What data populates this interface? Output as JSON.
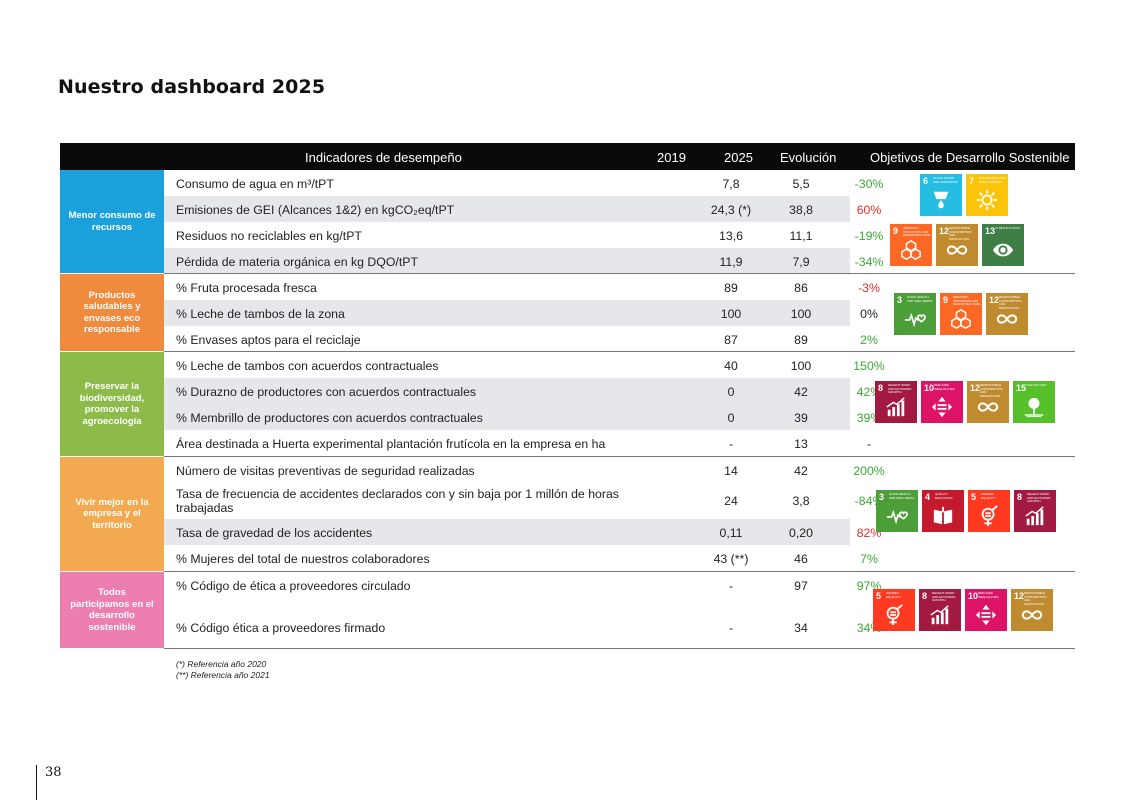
{
  "page": {
    "title": "Nuestro dashboard 2025",
    "page_number": "38"
  },
  "header": {
    "indicators": "Indicadores de desempeño",
    "y2019": "2019",
    "y2025": "2025",
    "evolution": "Evolución",
    "ods": "Objetivos de Desarrollo Sostenible"
  },
  "colors": {
    "up": "#3aa935",
    "down": "#e0302b",
    "neutral": "#222222"
  },
  "sections": [
    {
      "label": "Menor consumo de recursos",
      "color": "#1aa0db",
      "rows": [
        {
          "ind": "Consumo de agua en m³/tPT",
          "y2019": "7,8",
          "y2025": "5,5",
          "ev": "-30%",
          "trend": "up"
        },
        {
          "ind": "Emisiones de GEI (Alcances 1&2) en kgCO₂eq/tPT",
          "y2019": "24,3 (*)",
          "y2025": "38,8",
          "ev": "60%",
          "trend": "down"
        },
        {
          "ind": "Residuos no reciclables en kg/tPT",
          "y2019": "13,6",
          "y2025": "11,1",
          "ev": "-19%",
          "trend": "up"
        },
        {
          "ind": "Pérdida de materia orgánica en kg DQO/tPT",
          "y2019": "11,9",
          "y2025": "7,9",
          "ev": "-34%",
          "trend": "up"
        }
      ],
      "sdgs": [
        [
          {
            "n": "6",
            "t": "CLEAN WATER AND SANITATION",
            "c": "#26bde2",
            "icon": "water-icon"
          },
          {
            "n": "7",
            "t": "AFFORDABLE AND CLEAN ENERGY",
            "c": "#fcc30b",
            "icon": "sun-icon"
          }
        ],
        [
          {
            "n": "9",
            "t": "INDUSTRY, INNOVATION AND INFRASTRUCTURE",
            "c": "#fd6925",
            "icon": "cubes-icon"
          },
          {
            "n": "12",
            "t": "RESPONSIBLE CONSUMPTION AND PRODUCTION",
            "c": "#bf8b2e",
            "icon": "infinity-icon"
          },
          {
            "n": "13",
            "t": "CLIMATE ACTION",
            "c": "#3f7e44",
            "icon": "eye-icon"
          }
        ]
      ]
    },
    {
      "label": "Productos saludables y envases eco responsable",
      "color": "#f08a3c",
      "rows": [
        {
          "ind": "% Fruta procesada fresca",
          "y2019": "89",
          "y2025": "86",
          "ev": "-3%",
          "trend": "down"
        },
        {
          "ind": "% Leche de tambos de la zona",
          "y2019": "100",
          "y2025": "100",
          "ev": "0%",
          "trend": "neutral"
        },
        {
          "ind": "% Envases aptos para el reciclaje",
          "y2019": "87",
          "y2025": "89",
          "ev": "2%",
          "trend": "up"
        }
      ],
      "sdgs": [
        [
          {
            "n": "3",
            "t": "GOOD HEALTH AND WELL-BEING",
            "c": "#4c9f38",
            "icon": "heartbeat-icon"
          },
          {
            "n": "9",
            "t": "INDUSTRY, INNOVATION AND INFRASTRUCTURE",
            "c": "#fd6925",
            "icon": "cubes-icon"
          },
          {
            "n": "12",
            "t": "RESPONSIBLE CONSUMPTION AND PRODUCTION",
            "c": "#bf8b2e",
            "icon": "infinity-icon"
          }
        ]
      ]
    },
    {
      "label": "Preservar la biodiversidad, promover la agroecología",
      "color": "#8dbb4a",
      "rows": [
        {
          "ind": "% Leche de tambos con acuerdos contractuales",
          "y2019": "40",
          "y2025": "100",
          "ev": "150%",
          "trend": "up"
        },
        {
          "ind": "% Durazno de productores con acuerdos contractuales",
          "y2019": "0",
          "y2025": "42",
          "ev": "42%",
          "trend": "up"
        },
        {
          "ind": "% Membrillo de productores con acuerdos contractuales",
          "y2019": "0",
          "y2025": "39",
          "ev": "39%",
          "trend": "up"
        },
        {
          "ind": "Área destinada a Huerta experimental plantación frutícola en la empresa en ha",
          "y2019": "-",
          "y2025": "13",
          "ev": "-",
          "trend": "neutral"
        }
      ],
      "sdgs": [
        [
          {
            "n": "8",
            "t": "DECENT WORK AND ECONOMIC GROWTH",
            "c": "#a21942",
            "icon": "growth-chart-icon"
          },
          {
            "n": "10",
            "t": "REDUCED INEQUALITIES",
            "c": "#dd1367",
            "icon": "equality-icon"
          },
          {
            "n": "12",
            "t": "RESPONSIBLE CONSUMPTION AND PRODUCTION",
            "c": "#bf8b2e",
            "icon": "infinity-icon"
          },
          {
            "n": "15",
            "t": "LIFE ON LAND",
            "c": "#56c02b",
            "icon": "tree-icon"
          }
        ]
      ]
    },
    {
      "label": "Vivir mejor en la empresa y el territorio",
      "color": "#f2a950",
      "rows": [
        {
          "ind": "Número de visitas  preventivas de seguridad realizadas",
          "y2019": "14",
          "y2025": "42",
          "ev": "200%",
          "trend": "up"
        },
        {
          "ind": "Tasa de frecuencia de accidentes declarados con y sin baja por 1 millón de horas trabajadas",
          "y2019": "24",
          "y2025": "3,8",
          "ev": "-84%",
          "trend": "up"
        },
        {
          "ind": "Tasa de gravedad de los accidentes",
          "y2019": "0,11",
          "y2025": "0,20",
          "ev": "82%",
          "trend": "down"
        },
        {
          "ind": "% Mujeres del total de nuestros colaboradores",
          "y2019": "43 (**)",
          "y2025": "46",
          "ev": "7%",
          "trend": "up"
        }
      ],
      "sdgs": [
        [
          {
            "n": "3",
            "t": "GOOD HEALTH AND WELL-BEING",
            "c": "#4c9f38",
            "icon": "heartbeat-icon"
          },
          {
            "n": "4",
            "t": "QUALITY EDUCATION",
            "c": "#c5192d",
            "icon": "book-icon"
          },
          {
            "n": "5",
            "t": "GENDER EQUALITY",
            "c": "#ff3a21",
            "icon": "gender-icon"
          },
          {
            "n": "8",
            "t": "DECENT WORK AND ECONOMIC GROWTH",
            "c": "#a21942",
            "icon": "growth-chart-icon"
          }
        ]
      ]
    },
    {
      "label": "Todos participamos en el desarrollo sostenible",
      "color": "#ec7fb0",
      "rows": [
        {
          "ind": "% Código de ética a proveedores circulado",
          "y2019": "-",
          "y2025": "97",
          "ev": "97%",
          "trend": "up"
        },
        {
          "ind": "% Código ética a proveedores firmado",
          "y2019": "-",
          "y2025": "34",
          "ev": "34%",
          "trend": "up"
        }
      ],
      "sdgs": [
        [
          {
            "n": "5",
            "t": "GENDER EQUALITY",
            "c": "#ff3a21",
            "icon": "gender-icon"
          },
          {
            "n": "8",
            "t": "DECENT WORK AND ECONOMIC GROWTH",
            "c": "#a21942",
            "icon": "growth-chart-icon"
          },
          {
            "n": "10",
            "t": "REDUCED INEQUALITIES",
            "c": "#dd1367",
            "icon": "equality-icon"
          },
          {
            "n": "12",
            "t": "RESPONSIBLE CONSUMPTION AND PRODUCTION",
            "c": "#bf8b2e",
            "icon": "infinity-icon"
          }
        ]
      ]
    }
  ],
  "footnotes": [
    "(*) Referencia año 2020",
    "(**) Referencia año 2021"
  ]
}
